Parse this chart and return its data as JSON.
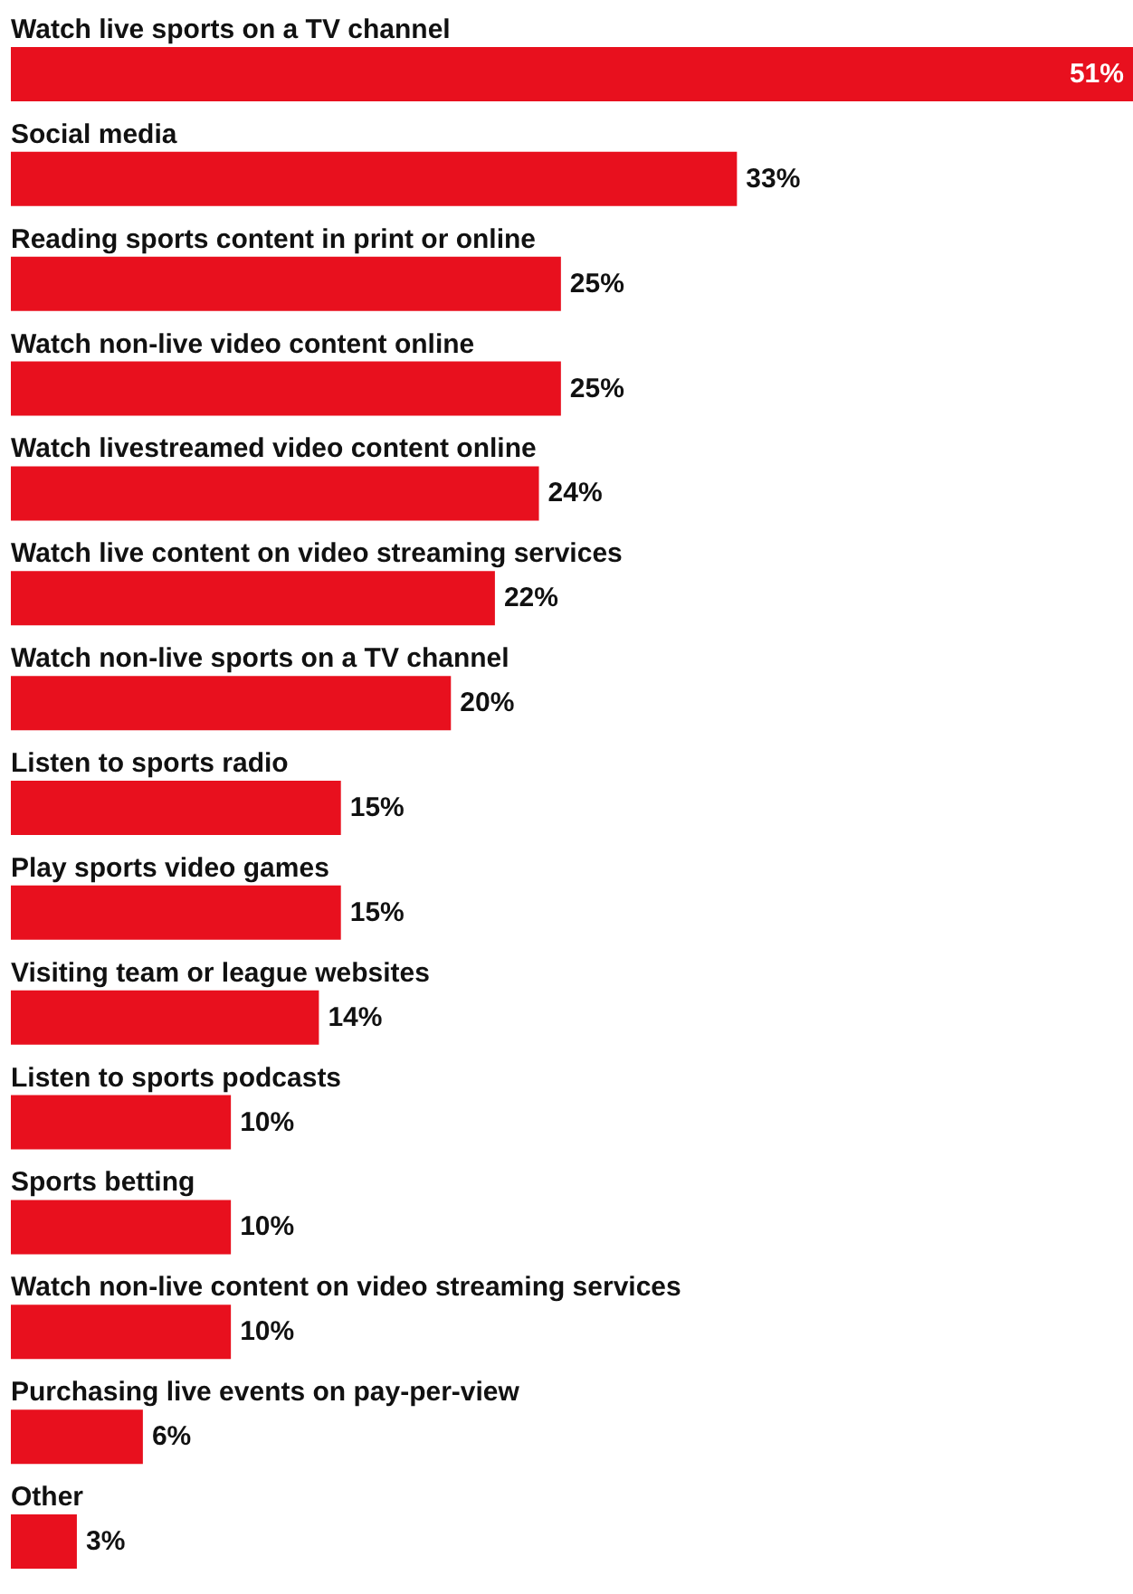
{
  "chart_data": {
    "type": "bar",
    "orientation": "horizontal",
    "categories": [
      "Watch live sports on a TV channel",
      "Social media",
      "Reading sports content in print or online",
      "Watch non-live video content online",
      "Watch livestreamed video content online",
      "Watch live content on video streaming services",
      "Watch non-live sports on a TV channel",
      "Listen to sports radio",
      "Play sports video games",
      "Visiting team or league websites",
      "Listen to sports podcasts",
      "Sports betting",
      "Watch non-live content on video streaming services",
      "Purchasing live events on pay-per-view",
      "Other"
    ],
    "values": [
      51,
      33,
      25,
      25,
      24,
      22,
      20,
      15,
      15,
      14,
      10,
      10,
      10,
      6,
      3
    ],
    "value_labels": [
      "51%",
      "33%",
      "25%",
      "25%",
      "24%",
      "22%",
      "20%",
      "15%",
      "15%",
      "14%",
      "10%",
      "10%",
      "10%",
      "6%",
      "3%"
    ],
    "color": "#e8101e"
  }
}
